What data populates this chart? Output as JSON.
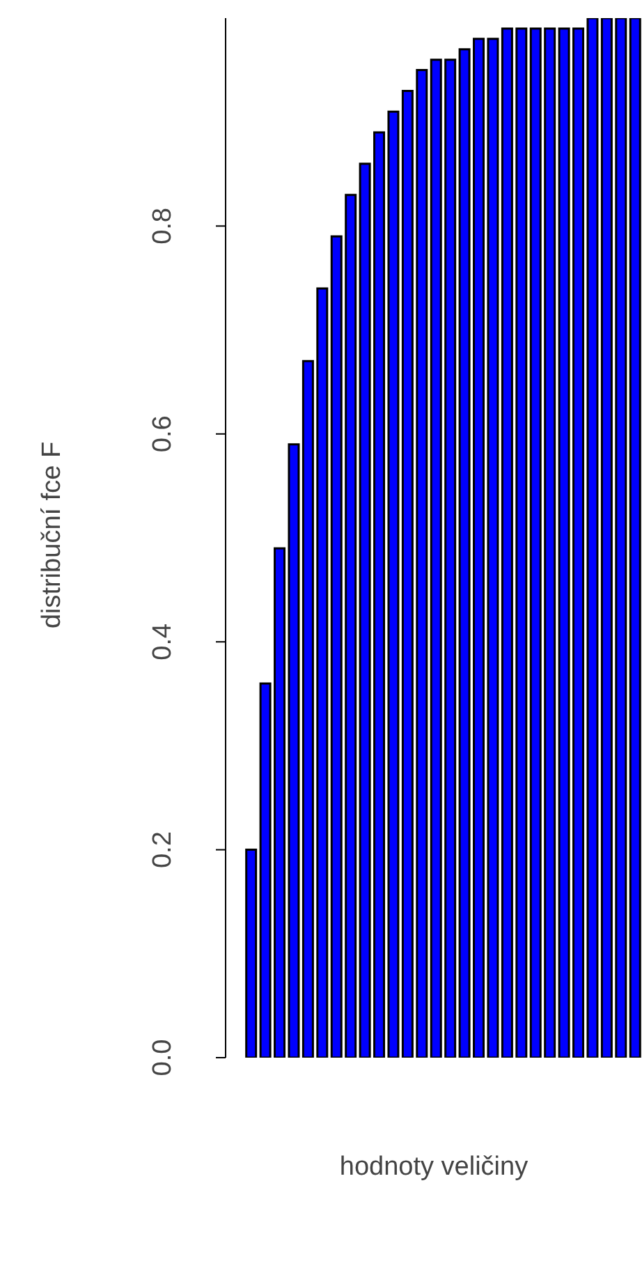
{
  "chart_data": {
    "type": "bar",
    "xlabel": "hodnoty veličiny",
    "ylabel": "distribuční fce F",
    "categories": [
      null,
      null,
      null,
      null,
      null,
      null,
      null,
      null,
      null,
      null,
      null,
      null,
      null,
      null,
      null,
      null,
      null,
      null,
      null,
      null,
      null,
      null,
      null,
      null,
      null,
      null,
      null,
      null
    ],
    "values": [
      0.2,
      0.36,
      0.49,
      0.59,
      0.67,
      0.74,
      0.79,
      0.83,
      0.86,
      0.89,
      0.91,
      0.93,
      0.95,
      0.96,
      0.96,
      0.97,
      0.98,
      0.98,
      0.99,
      0.99,
      0.99,
      0.99,
      0.99,
      0.99,
      1.0,
      1.0,
      1.0,
      1.0
    ],
    "color": "#0000ff",
    "ylim": [
      0,
      1
    ],
    "yticks": [
      {
        "value": 0,
        "label": "0.0"
      },
      {
        "value": 0.2,
        "label": "0.2"
      },
      {
        "value": 0.4,
        "label": "0.4"
      },
      {
        "value": 0.6,
        "label": "0.6"
      },
      {
        "value": 0.8,
        "label": "0.8"
      }
    ],
    "grid": false,
    "legend": false
  }
}
